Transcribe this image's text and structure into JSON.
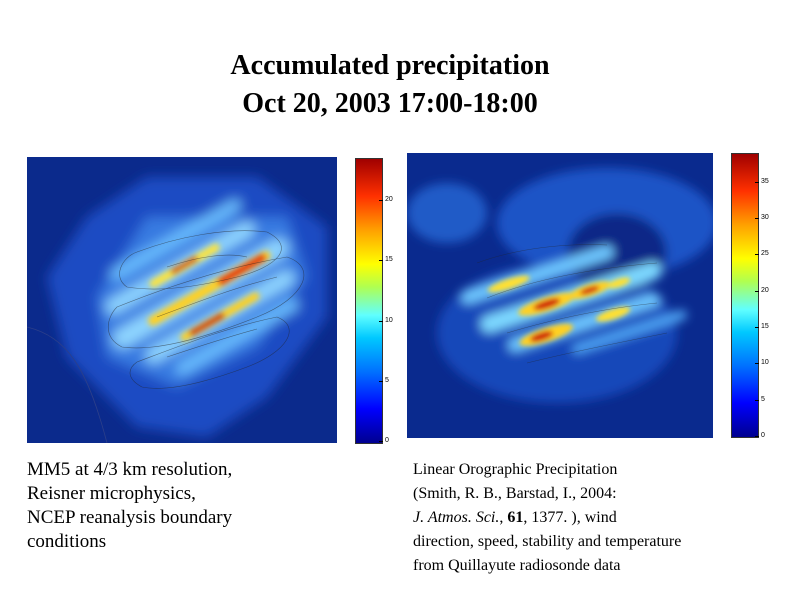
{
  "title": {
    "line1": "Accumulated precipitation",
    "line2": "Oct 20, 2003 17:00-18:00"
  },
  "colorscale": [
    "#00008f",
    "#0000ff",
    "#0070ff",
    "#00c8ff",
    "#60ffff",
    "#b0ff50",
    "#ffff00",
    "#ffa000",
    "#ff3000",
    "#a00000"
  ],
  "left_panel": {
    "colorbar_ticks": [
      "20",
      "15",
      "10",
      "5",
      "0"
    ],
    "caption": [
      "MM5 at 4/3 km resolution,",
      "Reisner microphysics,",
      "NCEP reanalysis boundary",
      "conditions"
    ]
  },
  "right_panel": {
    "colorbar_ticks": [
      "35",
      "30",
      "25",
      "20",
      "15",
      "10",
      "5",
      "0"
    ],
    "caption": {
      "line1": "Linear Orographic Precipitation",
      "line2": "(Smith, R. B., Barstad, I., 2004:",
      "journal": "J. Atmos. Sci.",
      "sep1": ", ",
      "volume": "61",
      "rest": ", 1377. ), wind",
      "line4": "direction, speed, stability and temperature",
      "line5": "from Quillayute radiosonde data"
    }
  }
}
